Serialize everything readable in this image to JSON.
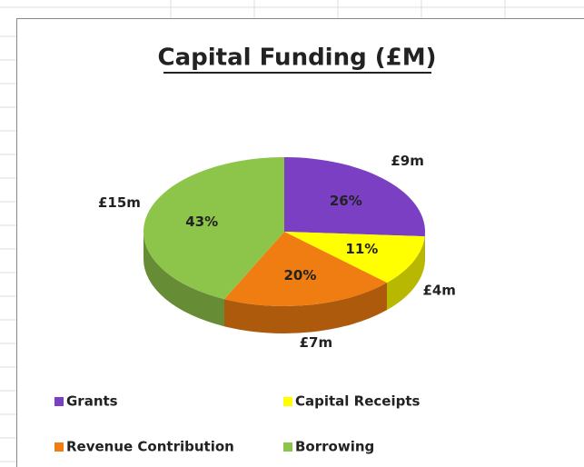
{
  "chart_data": {
    "type": "pie",
    "title": "Capital Funding (£M)",
    "categories": [
      "Grants",
      "Capital Receipts",
      "Revenue Contribution",
      "Borrowing"
    ],
    "values": [
      26,
      11,
      20,
      43
    ],
    "value_labels": [
      "26%",
      "11%",
      "20%",
      "43%"
    ],
    "amounts": [
      9,
      4,
      7,
      15
    ],
    "amount_labels": [
      "£9m",
      "£4m",
      "£7m",
      "£15m"
    ],
    "colors": [
      "#7b3fc4",
      "#ffff00",
      "#f07d12",
      "#8dc44a"
    ],
    "legend": "bottom"
  }
}
